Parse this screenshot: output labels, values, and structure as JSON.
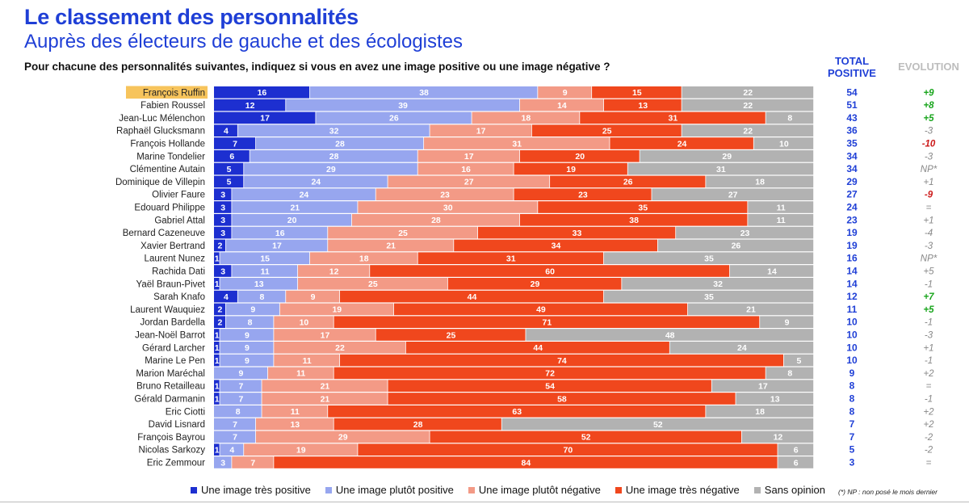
{
  "header": {
    "title": "Le classement des personnalités",
    "subtitle": "Auprès des électeurs de gauche et des écologistes",
    "question": "Pour chacune des personnalités suivantes, indiquez si vous en avez une image positive ou une image négative ?",
    "total_label": "TOTAL POSITIVE",
    "evolution_label": "EVOLUTION"
  },
  "colors": {
    "very_positive": "#1d2fd0",
    "rather_positive": "#97a6ef",
    "rather_negative": "#f39a86",
    "very_negative": "#f0471d",
    "no_opinion": "#b2b2b2",
    "highlight": "#f7c45c",
    "total_text": "#1f3fd6",
    "evo_up": "#18a51c",
    "evo_down": "#cc1a1a",
    "evo_neutral": "#888888"
  },
  "chart_data": {
    "type": "bar",
    "orientation": "horizontal",
    "stacked": true,
    "normalized": true,
    "legend_position": "bottom",
    "highlighted_category": "François Ruffin",
    "categories": [
      "François Ruffin",
      "Fabien Roussel",
      "Jean-Luc Mélenchon",
      "Raphaël Glucksmann",
      "François Hollande",
      "Marine Tondelier",
      "Clémentine Autain",
      "Dominique de Villepin",
      "Olivier Faure",
      "Edouard Philippe",
      "Gabriel Attal",
      "Bernard Cazeneuve",
      "Xavier Bertrand",
      "Laurent Nunez",
      "Rachida Dati",
      "Yaël Braun-Pivet",
      "Sarah Knafo",
      "Laurent Wauquiez",
      "Jordan Bardella",
      "Jean-Noël Barrot",
      "Gérard Larcher",
      "Marine Le Pen",
      "Marion Maréchal",
      "Bruno Retailleau",
      "Gérald Darmanin",
      "Eric Ciotti",
      "David Lisnard",
      "François Bayrou",
      "Nicolas Sarkozy",
      "Eric Zemmour"
    ],
    "series": [
      {
        "name": "Une image très positive",
        "key": "very_positive",
        "values": [
          16,
          12,
          17,
          4,
          7,
          6,
          5,
          5,
          3,
          3,
          3,
          3,
          2,
          1,
          3,
          1,
          4,
          2,
          2,
          1,
          1,
          1,
          0,
          1,
          1,
          0,
          0,
          0,
          1,
          0
        ]
      },
      {
        "name": "Une image plutôt positive",
        "key": "rather_positive",
        "values": [
          38,
          39,
          26,
          32,
          28,
          28,
          29,
          24,
          24,
          21,
          20,
          16,
          17,
          15,
          11,
          13,
          8,
          9,
          8,
          9,
          9,
          9,
          9,
          7,
          7,
          8,
          7,
          7,
          4,
          3
        ]
      },
      {
        "name": "Une image plutôt négative",
        "key": "rather_negative",
        "values": [
          9,
          14,
          18,
          17,
          31,
          17,
          16,
          27,
          23,
          30,
          28,
          25,
          21,
          18,
          12,
          25,
          9,
          19,
          10,
          17,
          22,
          11,
          11,
          21,
          21,
          11,
          13,
          29,
          19,
          7
        ]
      },
      {
        "name": "Une image très négative",
        "key": "very_negative",
        "values": [
          15,
          13,
          31,
          25,
          24,
          20,
          19,
          26,
          23,
          35,
          38,
          33,
          34,
          31,
          60,
          29,
          44,
          49,
          71,
          25,
          44,
          74,
          72,
          54,
          58,
          63,
          28,
          52,
          70,
          84
        ]
      },
      {
        "name": "Sans opinion",
        "key": "no_opinion",
        "values": [
          22,
          22,
          8,
          22,
          10,
          29,
          31,
          18,
          27,
          11,
          11,
          23,
          26,
          35,
          14,
          32,
          35,
          21,
          9,
          48,
          24,
          5,
          8,
          17,
          13,
          18,
          52,
          12,
          6,
          6
        ]
      }
    ],
    "total_positive": [
      54,
      51,
      43,
      36,
      35,
      34,
      34,
      29,
      27,
      24,
      23,
      19,
      19,
      16,
      14,
      14,
      12,
      11,
      10,
      10,
      10,
      10,
      9,
      8,
      8,
      8,
      7,
      7,
      5,
      3
    ],
    "evolution": [
      "+9",
      "+8",
      "+5",
      "-3",
      "-10",
      "-3",
      "NP*",
      "+1",
      "-9",
      "=",
      "+1",
      "-4",
      "-3",
      "NP*",
      "+5",
      "-1",
      "+7",
      "+5",
      "-1",
      "-3",
      "+1",
      "-1",
      "+2",
      "=",
      "-1",
      "+2",
      "+2",
      "-2",
      "-2",
      "="
    ],
    "evolution_emphasis": [
      "up",
      "up",
      "up",
      "neutral",
      "down",
      "neutral",
      "neutral",
      "neutral",
      "down",
      "neutral",
      "neutral",
      "neutral",
      "neutral",
      "neutral",
      "neutral",
      "neutral",
      "up",
      "up",
      "neutral",
      "neutral",
      "neutral",
      "neutral",
      "neutral",
      "neutral",
      "neutral",
      "neutral",
      "neutral",
      "neutral",
      "neutral",
      "neutral"
    ]
  },
  "legend": {
    "items": [
      {
        "label": "Une image très positive",
        "color_key": "very_positive"
      },
      {
        "label": "Une image plutôt positive",
        "color_key": "rather_positive"
      },
      {
        "label": "Une image plutôt négative",
        "color_key": "rather_negative"
      },
      {
        "label": "Une image très négative",
        "color_key": "very_negative"
      },
      {
        "label": "Sans opinion",
        "color_key": "no_opinion"
      }
    ]
  },
  "footnote": "(*) NP : non posé le mois dernier"
}
